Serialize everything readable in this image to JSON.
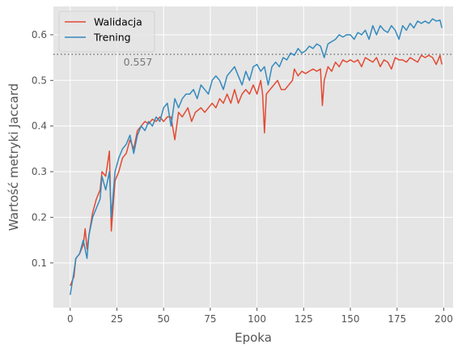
{
  "chart_data": {
    "type": "line",
    "title": "",
    "xlabel": "Epoka",
    "ylabel": "Wartość metryki Jaccard",
    "xlim": [
      -9,
      205
    ],
    "ylim": [
      0.002,
      0.662
    ],
    "xticks": [
      0,
      25,
      50,
      75,
      100,
      125,
      150,
      175,
      200
    ],
    "yticks": [
      0.1,
      0.2,
      0.3,
      0.4,
      0.5,
      0.6
    ],
    "ytick_labels": [
      "0.1",
      "0.2",
      "0.3",
      "0.4",
      "0.5",
      "0.6"
    ],
    "grid": true,
    "legend_position": "top-left",
    "hline": {
      "y": 0.557,
      "label": "0.557",
      "style": "dotted",
      "color": "#777777"
    },
    "series": [
      {
        "name": "Walidacja",
        "color": "#E24A33",
        "keypoints": [
          [
            0,
            0.05
          ],
          [
            2,
            0.07
          ],
          [
            3,
            0.11
          ],
          [
            5,
            0.12
          ],
          [
            7,
            0.14
          ],
          [
            8,
            0.175
          ],
          [
            9,
            0.13
          ],
          [
            10,
            0.16
          ],
          [
            12,
            0.21
          ],
          [
            14,
            0.24
          ],
          [
            16,
            0.26
          ],
          [
            17,
            0.3
          ],
          [
            19,
            0.29
          ],
          [
            21,
            0.345
          ],
          [
            22,
            0.17
          ],
          [
            24,
            0.28
          ],
          [
            26,
            0.3
          ],
          [
            28,
            0.33
          ],
          [
            30,
            0.34
          ],
          [
            32,
            0.37
          ],
          [
            34,
            0.35
          ],
          [
            36,
            0.39
          ],
          [
            38,
            0.4
          ],
          [
            40,
            0.41
          ],
          [
            42,
            0.405
          ],
          [
            44,
            0.415
          ],
          [
            46,
            0.41
          ],
          [
            48,
            0.42
          ],
          [
            50,
            0.41
          ],
          [
            52,
            0.42
          ],
          [
            54,
            0.42
          ],
          [
            56,
            0.37
          ],
          [
            58,
            0.43
          ],
          [
            60,
            0.42
          ],
          [
            63,
            0.44
          ],
          [
            65,
            0.41
          ],
          [
            67,
            0.43
          ],
          [
            70,
            0.44
          ],
          [
            72,
            0.43
          ],
          [
            74,
            0.44
          ],
          [
            76,
            0.45
          ],
          [
            78,
            0.44
          ],
          [
            80,
            0.46
          ],
          [
            82,
            0.45
          ],
          [
            84,
            0.47
          ],
          [
            86,
            0.45
          ],
          [
            88,
            0.48
          ],
          [
            90,
            0.45
          ],
          [
            92,
            0.47
          ],
          [
            94,
            0.48
          ],
          [
            96,
            0.47
          ],
          [
            98,
            0.49
          ],
          [
            100,
            0.47
          ],
          [
            102,
            0.5
          ],
          [
            103,
            0.47
          ],
          [
            104,
            0.385
          ],
          [
            105,
            0.47
          ],
          [
            107,
            0.48
          ],
          [
            109,
            0.49
          ],
          [
            111,
            0.5
          ],
          [
            113,
            0.48
          ],
          [
            115,
            0.48
          ],
          [
            117,
            0.49
          ],
          [
            119,
            0.5
          ],
          [
            120,
            0.525
          ],
          [
            122,
            0.51
          ],
          [
            124,
            0.52
          ],
          [
            126,
            0.515
          ],
          [
            128,
            0.52
          ],
          [
            130,
            0.525
          ],
          [
            132,
            0.52
          ],
          [
            134,
            0.525
          ],
          [
            135,
            0.445
          ],
          [
            136,
            0.5
          ],
          [
            138,
            0.53
          ],
          [
            140,
            0.52
          ],
          [
            142,
            0.54
          ],
          [
            144,
            0.53
          ],
          [
            146,
            0.545
          ],
          [
            148,
            0.54
          ],
          [
            150,
            0.545
          ],
          [
            152,
            0.54
          ],
          [
            154,
            0.545
          ],
          [
            156,
            0.53
          ],
          [
            158,
            0.55
          ],
          [
            160,
            0.545
          ],
          [
            162,
            0.54
          ],
          [
            164,
            0.55
          ],
          [
            166,
            0.53
          ],
          [
            168,
            0.545
          ],
          [
            170,
            0.54
          ],
          [
            172,
            0.525
          ],
          [
            174,
            0.55
          ],
          [
            176,
            0.545
          ],
          [
            178,
            0.545
          ],
          [
            180,
            0.54
          ],
          [
            182,
            0.55
          ],
          [
            184,
            0.545
          ],
          [
            186,
            0.54
          ],
          [
            188,
            0.555
          ],
          [
            190,
            0.55
          ],
          [
            192,
            0.555
          ],
          [
            194,
            0.55
          ],
          [
            196,
            0.535
          ],
          [
            198,
            0.555
          ],
          [
            199,
            0.535
          ]
        ]
      },
      {
        "name": "Trening",
        "color": "#348ABD",
        "keypoints": [
          [
            0,
            0.03
          ],
          [
            2,
            0.08
          ],
          [
            3,
            0.11
          ],
          [
            5,
            0.12
          ],
          [
            7,
            0.15
          ],
          [
            8,
            0.13
          ],
          [
            9,
            0.11
          ],
          [
            10,
            0.16
          ],
          [
            12,
            0.2
          ],
          [
            14,
            0.22
          ],
          [
            16,
            0.24
          ],
          [
            17,
            0.29
          ],
          [
            19,
            0.26
          ],
          [
            21,
            0.3
          ],
          [
            22,
            0.2
          ],
          [
            24,
            0.3
          ],
          [
            26,
            0.33
          ],
          [
            28,
            0.35
          ],
          [
            30,
            0.36
          ],
          [
            32,
            0.38
          ],
          [
            34,
            0.34
          ],
          [
            36,
            0.38
          ],
          [
            38,
            0.4
          ],
          [
            40,
            0.39
          ],
          [
            42,
            0.41
          ],
          [
            44,
            0.4
          ],
          [
            46,
            0.42
          ],
          [
            48,
            0.41
          ],
          [
            50,
            0.44
          ],
          [
            52,
            0.45
          ],
          [
            54,
            0.4
          ],
          [
            56,
            0.46
          ],
          [
            58,
            0.44
          ],
          [
            60,
            0.46
          ],
          [
            62,
            0.47
          ],
          [
            64,
            0.47
          ],
          [
            66,
            0.48
          ],
          [
            68,
            0.46
          ],
          [
            70,
            0.49
          ],
          [
            72,
            0.48
          ],
          [
            74,
            0.47
          ],
          [
            76,
            0.5
          ],
          [
            78,
            0.51
          ],
          [
            80,
            0.5
          ],
          [
            82,
            0.48
          ],
          [
            84,
            0.51
          ],
          [
            86,
            0.52
          ],
          [
            88,
            0.53
          ],
          [
            90,
            0.51
          ],
          [
            92,
            0.49
          ],
          [
            94,
            0.52
          ],
          [
            96,
            0.5
          ],
          [
            98,
            0.53
          ],
          [
            100,
            0.535
          ],
          [
            102,
            0.52
          ],
          [
            104,
            0.53
          ],
          [
            106,
            0.49
          ],
          [
            108,
            0.53
          ],
          [
            110,
            0.54
          ],
          [
            112,
            0.53
          ],
          [
            114,
            0.55
          ],
          [
            116,
            0.545
          ],
          [
            118,
            0.56
          ],
          [
            120,
            0.555
          ],
          [
            122,
            0.57
          ],
          [
            124,
            0.56
          ],
          [
            126,
            0.565
          ],
          [
            128,
            0.575
          ],
          [
            130,
            0.57
          ],
          [
            132,
            0.58
          ],
          [
            134,
            0.575
          ],
          [
            136,
            0.55
          ],
          [
            138,
            0.58
          ],
          [
            140,
            0.585
          ],
          [
            142,
            0.59
          ],
          [
            144,
            0.6
          ],
          [
            146,
            0.595
          ],
          [
            148,
            0.6
          ],
          [
            150,
            0.6
          ],
          [
            152,
            0.59
          ],
          [
            154,
            0.605
          ],
          [
            156,
            0.6
          ],
          [
            158,
            0.61
          ],
          [
            160,
            0.59
          ],
          [
            162,
            0.62
          ],
          [
            164,
            0.6
          ],
          [
            166,
            0.62
          ],
          [
            168,
            0.61
          ],
          [
            170,
            0.605
          ],
          [
            172,
            0.62
          ],
          [
            174,
            0.61
          ],
          [
            176,
            0.59
          ],
          [
            178,
            0.62
          ],
          [
            180,
            0.61
          ],
          [
            182,
            0.625
          ],
          [
            184,
            0.615
          ],
          [
            186,
            0.63
          ],
          [
            188,
            0.625
          ],
          [
            190,
            0.63
          ],
          [
            192,
            0.625
          ],
          [
            194,
            0.635
          ],
          [
            196,
            0.63
          ],
          [
            198,
            0.632
          ],
          [
            199,
            0.615
          ]
        ]
      }
    ]
  }
}
